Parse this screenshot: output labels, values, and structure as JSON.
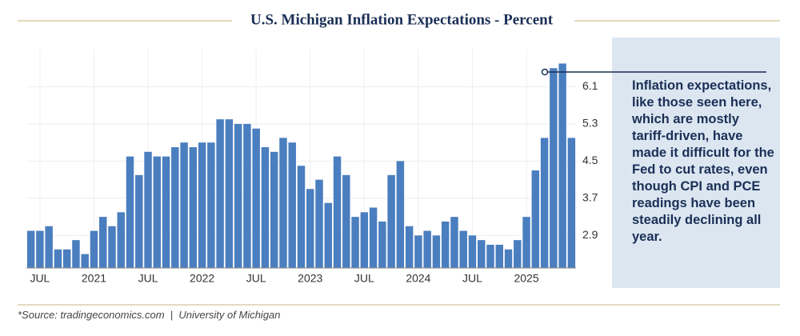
{
  "chart_data": {
    "type": "bar",
    "title": "U.S. Michigan Inflation Expectations - Percent",
    "annotation": "Inflation expectations, like those seen here, which are mostly tariff-driven, have made it difficult for the Fed to cut rates, even though CPI and PCE readings have been steadily declining all year.",
    "source": "*Source: tradingeconomics.com  |  University of Michigan",
    "categories": [
      null,
      "JUL",
      null,
      null,
      null,
      null,
      null,
      "2021",
      null,
      null,
      null,
      null,
      null,
      "JUL",
      null,
      null,
      null,
      null,
      null,
      "2022",
      null,
      null,
      null,
      null,
      null,
      "JUL",
      null,
      null,
      null,
      null,
      null,
      "2023",
      null,
      null,
      null,
      null,
      null,
      "JUL",
      null,
      null,
      null,
      null,
      null,
      "2024",
      null,
      null,
      null,
      null,
      null,
      "JUL",
      null,
      null,
      null,
      null,
      null,
      "2025",
      null,
      null,
      null,
      null,
      null
    ],
    "values": [
      3.0,
      3.0,
      3.1,
      2.6,
      2.6,
      2.8,
      2.5,
      3.0,
      3.3,
      3.1,
      3.4,
      4.6,
      4.2,
      4.7,
      4.6,
      4.6,
      4.8,
      4.9,
      4.8,
      4.9,
      4.9,
      5.4,
      5.4,
      5.3,
      5.3,
      5.2,
      4.8,
      4.7,
      5.0,
      4.9,
      4.4,
      3.9,
      4.1,
      3.6,
      4.6,
      4.2,
      3.3,
      3.4,
      3.5,
      3.2,
      4.2,
      4.5,
      3.1,
      2.9,
      3.0,
      2.9,
      3.2,
      3.3,
      3.0,
      2.9,
      2.8,
      2.7,
      2.7,
      2.6,
      2.8,
      3.3,
      4.3,
      5.0,
      6.5,
      6.6,
      5.0
    ],
    "color": "#4a7ebf",
    "ylim": [
      2.2,
      6.9
    ],
    "yticks": [
      2.9,
      3.7,
      4.5,
      5.3,
      6.1
    ],
    "grid": true
  }
}
